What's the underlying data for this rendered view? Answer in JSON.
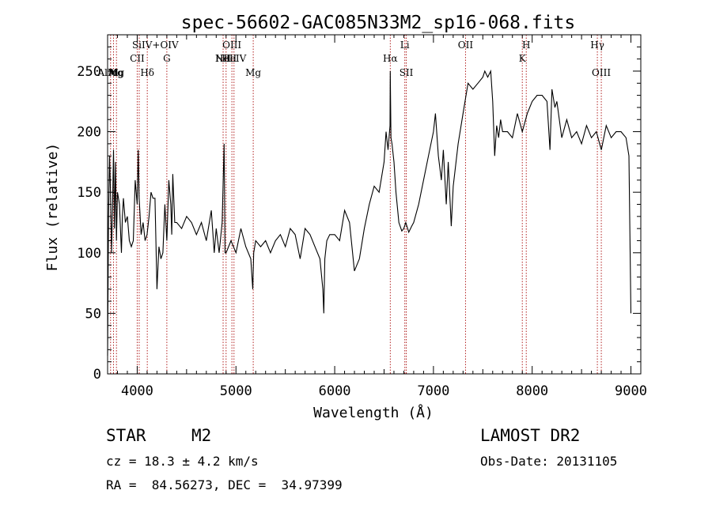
{
  "chart_data": {
    "type": "line",
    "title": "spec-56602-GAC085N33M2_sp16-068.fits",
    "xlabel": "Wavelength (Å)",
    "ylabel": "Flux (relative)",
    "xlim": [
      3700,
      9100
    ],
    "ylim": [
      0,
      280
    ],
    "xticks": [
      4000,
      5000,
      6000,
      7000,
      8000,
      9000
    ],
    "yticks": [
      0,
      50,
      100,
      150,
      200,
      250
    ],
    "grid": false,
    "series": [
      {
        "x": [
          3700,
          3710,
          3720,
          3730,
          3740,
          3750,
          3760,
          3770,
          3780,
          3790,
          3800,
          3820,
          3840,
          3850,
          3860,
          3880,
          3900,
          3920,
          3940,
          3960,
          3980,
          4000,
          4010,
          4020,
          4040,
          4060,
          4080,
          4100,
          4120,
          4140,
          4160,
          4180,
          4200,
          4220,
          4240,
          4260,
          4280,
          4300,
          4320,
          4340,
          4350,
          4360,
          4380,
          4400,
          4450,
          4500,
          4550,
          4600,
          4650,
          4700,
          4750,
          4780,
          4800,
          4830,
          4860,
          4880,
          4890,
          4900,
          4950,
          5000,
          5050,
          5100,
          5150,
          5170,
          5180,
          5200,
          5250,
          5300,
          5350,
          5400,
          5450,
          5500,
          5550,
          5600,
          5650,
          5700,
          5750,
          5800,
          5850,
          5880,
          5890,
          5900,
          5920,
          5950,
          6000,
          6050,
          6080,
          6100,
          6150,
          6200,
          6250,
          6300,
          6350,
          6400,
          6450,
          6500,
          6520,
          6540,
          6560,
          6563,
          6570,
          6580,
          6600,
          6620,
          6650,
          6680,
          6700,
          6720,
          6750,
          6780,
          6800,
          6850,
          6900,
          6950,
          7000,
          7020,
          7050,
          7080,
          7100,
          7130,
          7150,
          7180,
          7200,
          7250,
          7300,
          7350,
          7400,
          7450,
          7500,
          7520,
          7550,
          7580,
          7600,
          7620,
          7640,
          7660,
          7680,
          7700,
          7750,
          7800,
          7850,
          7900,
          7950,
          8000,
          8050,
          8100,
          8150,
          8180,
          8200,
          8230,
          8250,
          8300,
          8350,
          8400,
          8450,
          8500,
          8550,
          8600,
          8650,
          8700,
          8750,
          8800,
          8850,
          8900,
          8950,
          8980,
          9000
        ],
        "y": [
          15,
          130,
          180,
          150,
          100,
          135,
          185,
          120,
          175,
          110,
          150,
          140,
          100,
          130,
          145,
          125,
          130,
          110,
          105,
          110,
          160,
          140,
          185,
          145,
          115,
          125,
          110,
          115,
          130,
          150,
          145,
          145,
          70,
          105,
          95,
          100,
          140,
          110,
          160,
          140,
          115,
          165,
          125,
          125,
          120,
          130,
          125,
          115,
          125,
          110,
          135,
          100,
          120,
          100,
          125,
          190,
          100,
          100,
          110,
          100,
          120,
          105,
          95,
          70,
          100,
          110,
          105,
          110,
          100,
          110,
          115,
          105,
          120,
          115,
          95,
          120,
          115,
          105,
          95,
          70,
          50,
          95,
          110,
          115,
          115,
          110,
          125,
          135,
          125,
          85,
          95,
          120,
          140,
          155,
          150,
          175,
          200,
          185,
          205,
          250,
          195,
          190,
          175,
          150,
          125,
          118,
          120,
          125,
          117,
          122,
          125,
          140,
          160,
          180,
          200,
          215,
          180,
          160,
          185,
          140,
          175,
          122,
          155,
          190,
          215,
          240,
          235,
          240,
          245,
          250,
          245,
          250,
          225,
          180,
          205,
          195,
          210,
          200,
          200,
          195,
          215,
          200,
          215,
          225,
          230,
          230,
          225,
          185,
          235,
          220,
          225,
          195,
          210,
          195,
          200,
          190,
          205,
          195,
          200,
          185,
          205,
          195,
          200,
          200,
          195,
          180,
          50
        ]
      }
    ],
    "lines": [
      {
        "x": 3730,
        "label": "AlMg"
      },
      {
        "x": 3760,
        "label": "Al"
      },
      {
        "x": 3790,
        "label": "Mg"
      },
      {
        "x": 4000,
        "label": "CII"
      },
      {
        "x": 4020,
        "label": "SiIV+OIV"
      },
      {
        "x": 4102,
        "label": "Hδ"
      },
      {
        "x": 4300,
        "label": "G"
      },
      {
        "x": 4870,
        "label": "NII"
      },
      {
        "x": 4900,
        "label": "HeII"
      },
      {
        "x": 4959,
        "label": "OIII"
      },
      {
        "x": 4980,
        "label": "HeIV"
      },
      {
        "x": 5175,
        "label": "Mg"
      },
      {
        "x": 6563,
        "label": "Hα"
      },
      {
        "x": 6710,
        "label": "Li"
      },
      {
        "x": 6725,
        "label": "SII"
      },
      {
        "x": 7325,
        "label": "OII"
      },
      {
        "x": 7900,
        "label": "K"
      },
      {
        "x": 7940,
        "label": "H"
      },
      {
        "x": 8660,
        "label": "Hγ"
      },
      {
        "x": 8700,
        "label": "OIII"
      }
    ]
  },
  "info": {
    "object_type": "STAR",
    "subclass": "M2",
    "survey": "LAMOST DR2",
    "cz": "cz = 18.3 ± 4.2 km/s",
    "obs_date": "Obs-Date: 20131105",
    "coords": "RA =  84.56273, DEC =  34.97399"
  }
}
